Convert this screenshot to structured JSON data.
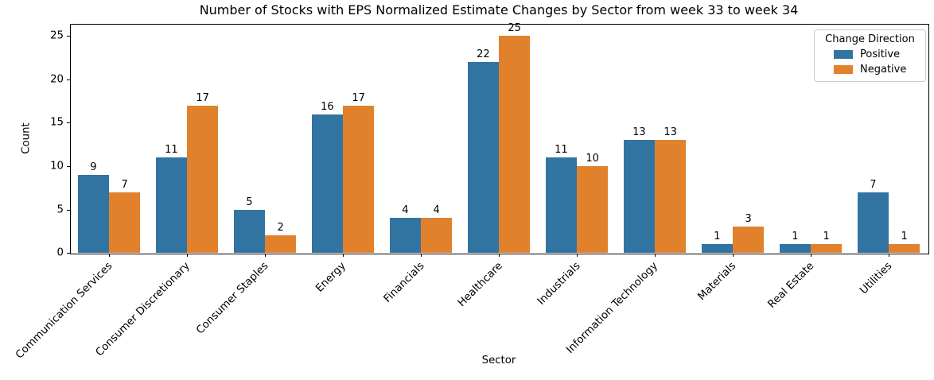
{
  "chart_data": {
    "type": "bar",
    "title": "Number of Stocks with EPS Normalized Estimate Changes by Sector from week 33 to week 34",
    "xlabel": "Sector",
    "ylabel": "Count",
    "categories": [
      "Communication Services",
      "Consumer Discretionary",
      "Consumer Staples",
      "Energy",
      "Financials",
      "Healthcare",
      "Industrials",
      "Information Technology",
      "Materials",
      "Real Estate",
      "Utilities"
    ],
    "series": [
      {
        "name": "Positive",
        "color": "#3274a1",
        "values": [
          9,
          11,
          5,
          16,
          4,
          22,
          11,
          13,
          1,
          1,
          7
        ]
      },
      {
        "name": "Negative",
        "color": "#e1812c",
        "values": [
          7,
          17,
          2,
          17,
          4,
          25,
          10,
          13,
          3,
          1,
          1
        ]
      }
    ],
    "yticks": [
      0,
      5,
      10,
      15,
      20,
      25
    ],
    "ylim": [
      0,
      26.4
    ],
    "grid": false,
    "legend": {
      "title": "Change Direction",
      "position": "upper right"
    },
    "bar_value_labels": true
  }
}
